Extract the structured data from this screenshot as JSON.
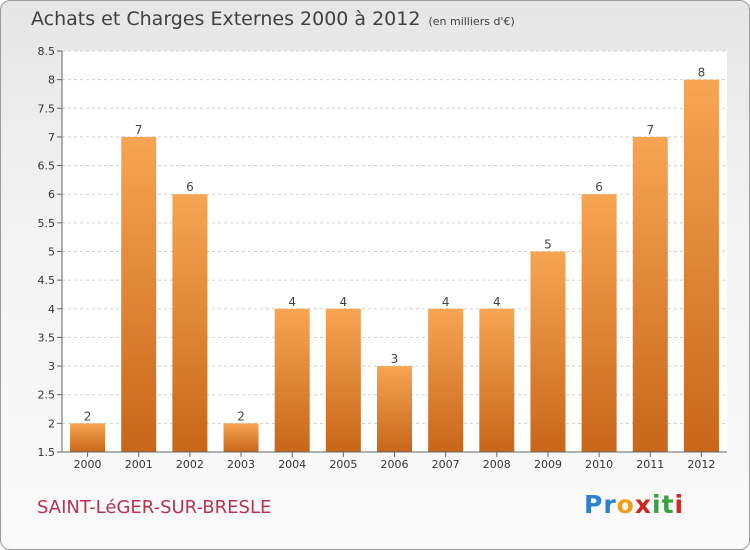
{
  "header": {
    "title": "Achats et Charges Externes 2000 à 2012",
    "unit": "(en milliers d'€)"
  },
  "footer": {
    "commune": "SAINT-LéGER-SUR-BRESLE"
  },
  "logo": {
    "letters": [
      {
        "char": "P",
        "color": "#2f7fd0"
      },
      {
        "char": "r",
        "color": "#2f7fd0"
      },
      {
        "char": "o",
        "color": "#f0a020"
      },
      {
        "char": "x",
        "color": "#d02820"
      },
      {
        "char": "i",
        "color": "#3aa040"
      },
      {
        "char": "t",
        "color": "#3aa040"
      },
      {
        "char": "i",
        "color": "#d02820"
      }
    ]
  },
  "chart_data": {
    "type": "bar",
    "categories": [
      "2000",
      "2001",
      "2002",
      "2003",
      "2004",
      "2005",
      "2006",
      "2007",
      "2008",
      "2009",
      "2010",
      "2011",
      "2012"
    ],
    "values": [
      2,
      7,
      6,
      2,
      4,
      4,
      3,
      4,
      4,
      5,
      6,
      7,
      8
    ],
    "ylim": [
      1.5,
      8.5
    ],
    "yticks": [
      "1.5",
      "2",
      "2.5",
      "3",
      "3.5",
      "4",
      "4.5",
      "5",
      "5.5",
      "6",
      "6.5",
      "7",
      "7.5",
      "8",
      "8.5"
    ],
    "grid": true,
    "colors": {
      "bar_light": "#f7a553",
      "bar_dark": "#c8661a",
      "grid": "#cfcfcf"
    }
  }
}
